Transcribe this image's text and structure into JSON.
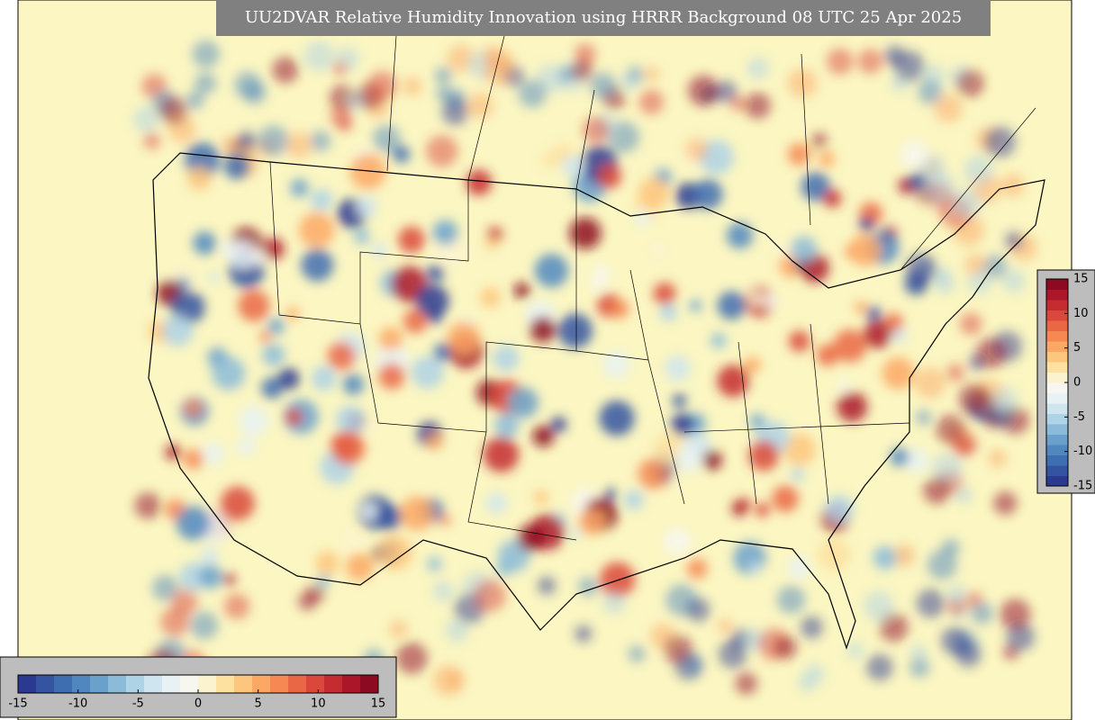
{
  "title": "UU2DVAR Relative Humidity Innovation using HRRR Background 08 UTC 25 Apr 2025",
  "colorbar": {
    "range": [
      -15,
      15
    ],
    "ticks": [
      -15,
      -10,
      -5,
      0,
      5,
      10,
      15
    ],
    "colors": [
      "#2b3990",
      "#3453a1",
      "#3e6db0",
      "#5087bf",
      "#6aa1cc",
      "#8bbbd9",
      "#aed2e6",
      "#cfe5ef",
      "#e8f2f4",
      "#f7f7f0",
      "#fbf3d0",
      "#fde1a0",
      "#fdc67e",
      "#fba865",
      "#f58853",
      "#ea6746",
      "#d9483b",
      "#c42c30",
      "#ab1628",
      "#8c0b22"
    ]
  }
}
